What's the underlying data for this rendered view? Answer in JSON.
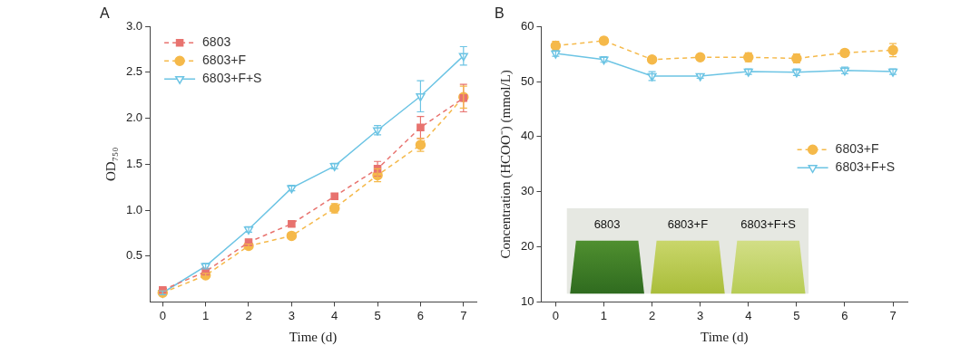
{
  "chart_data": [
    {
      "type": "line",
      "title": "A",
      "x_label": "Time (d)",
      "y_label": "OD₇₅₀",
      "x": [
        0,
        1,
        2,
        3,
        4,
        5,
        6,
        7
      ],
      "xlim": [
        -0.3,
        7.3
      ],
      "xticks": [
        0,
        1,
        2,
        3,
        4,
        5,
        6,
        7
      ],
      "ylim": [
        0,
        3
      ],
      "yticks": [
        {
          "value": 0.5,
          "label": "0.5"
        },
        {
          "value": 1,
          "label": "1.0"
        },
        {
          "value": 1.5,
          "label": "1.5"
        },
        {
          "value": 2,
          "label": "2.0"
        },
        {
          "value": 2.5,
          "label": "2.5"
        },
        {
          "value": 3,
          "label": "3.0"
        }
      ],
      "grid": false,
      "legend": "upper left",
      "series": [
        {
          "name": "6803",
          "color": "#e8736f",
          "marker": "square",
          "line_style": "dashed",
          "values": [
            0.13,
            0.33,
            0.65,
            0.85,
            1.15,
            1.45,
            1.9,
            2.22
          ],
          "errors": [
            0.02,
            0.02,
            0.03,
            0.03,
            0.03,
            0.08,
            0.12,
            0.15
          ]
        },
        {
          "name": "6803+F",
          "color": "#f5b94a",
          "marker": "circle",
          "line_style": "dashed",
          "values": [
            0.1,
            0.29,
            0.61,
            0.72,
            1.02,
            1.38,
            1.71,
            2.23
          ],
          "errors": [
            0.02,
            0.02,
            0.02,
            0.02,
            0.05,
            0.07,
            0.07,
            0.12
          ]
        },
        {
          "name": "6803+F+S",
          "color": "#6cc4e4",
          "marker": "open_triangle_down",
          "line_style": "solid",
          "values": [
            0.1,
            0.39,
            0.79,
            1.24,
            1.48,
            1.87,
            2.24,
            2.68
          ],
          "errors": [
            0.02,
            0.03,
            0.03,
            0.03,
            0.03,
            0.05,
            0.17,
            0.1
          ]
        }
      ]
    },
    {
      "type": "line",
      "title": "B",
      "x_label": "Time (d)",
      "y_label": "Concentration (HCOO⁻) (mmol/L)",
      "x": [
        0,
        1,
        2,
        3,
        4,
        5,
        6,
        7
      ],
      "xlim": [
        -0.3,
        7.3
      ],
      "xticks": [
        0,
        1,
        2,
        3,
        4,
        5,
        6,
        7
      ],
      "ylim": [
        10,
        60
      ],
      "yticks": [
        10,
        20,
        30,
        40,
        50,
        60
      ],
      "grid": false,
      "legend": "center right",
      "annotations": [
        "6803",
        "6803+F",
        "6803+F+S"
      ],
      "series": [
        {
          "name": "6803+F",
          "color": "#f5b94a",
          "marker": "circle",
          "line_style": "dashed",
          "values": [
            56.5,
            57.4,
            54.0,
            54.4,
            54.4,
            54.2,
            55.2,
            55.7
          ],
          "errors": [
            0.8,
            0.6,
            0.5,
            0.5,
            0.8,
            0.8,
            0.6,
            1.2
          ]
        },
        {
          "name": "6803+F+S",
          "color": "#6cc4e4",
          "marker": "open_triangle_down",
          "line_style": "solid",
          "values": [
            55.1,
            54.0,
            51.0,
            51.0,
            51.8,
            51.7,
            52.0,
            51.8
          ],
          "errors": [
            0.5,
            0.5,
            0.8,
            0.4,
            0.5,
            0.6,
            0.6,
            0.5
          ]
        }
      ]
    }
  ]
}
